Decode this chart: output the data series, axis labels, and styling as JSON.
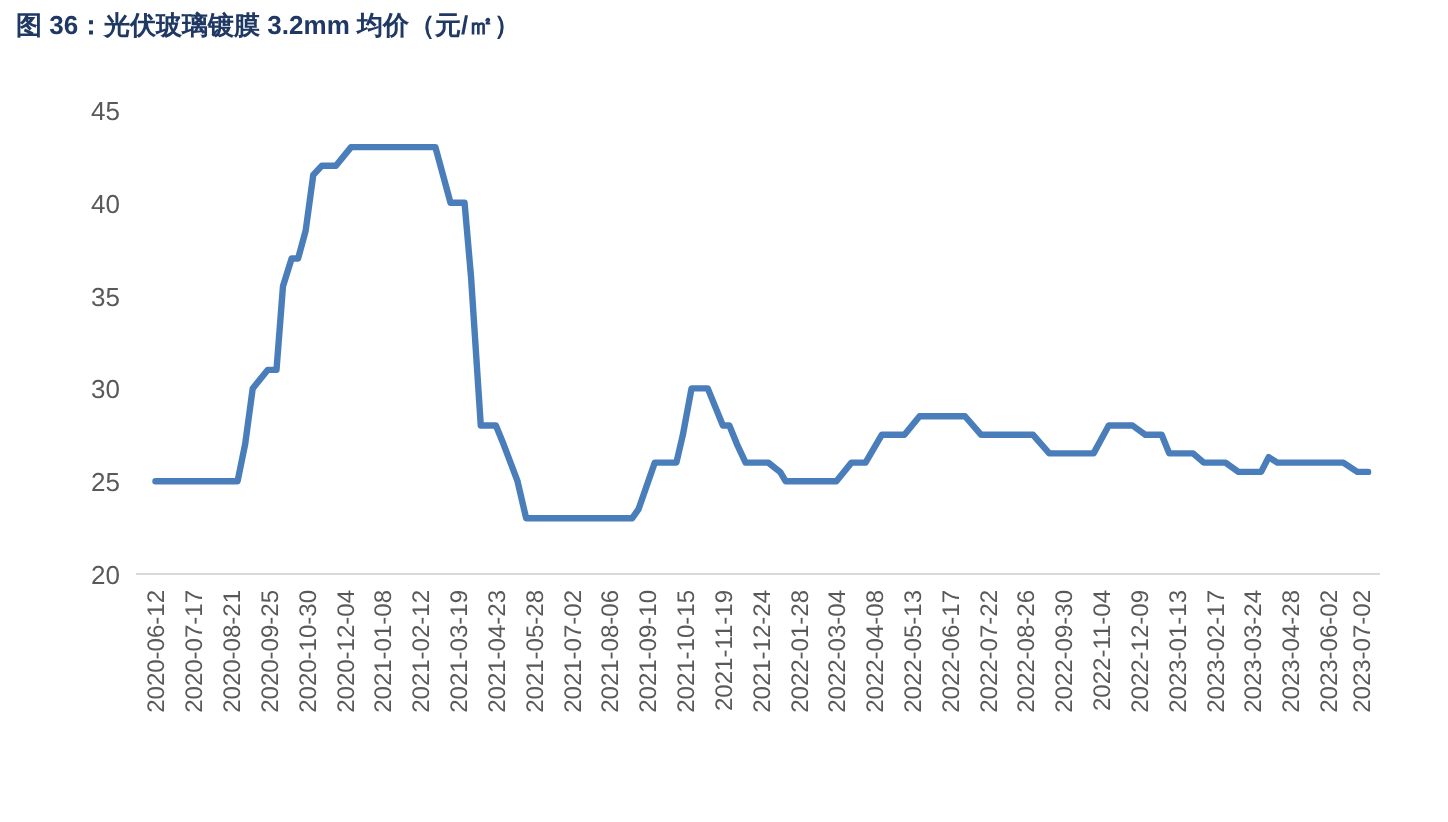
{
  "chart_data": {
    "type": "line",
    "title": "图 36：光伏玻璃镀膜 3.2mm 均价（元/㎡）",
    "x": [
      "2020-06-12",
      "2020-08-27",
      "2020-09-03",
      "2020-09-10",
      "2020-09-24",
      "2020-10-02",
      "2020-10-08",
      "2020-10-16",
      "2020-10-22",
      "2020-10-29",
      "2020-11-05",
      "2020-11-13",
      "2020-11-26",
      "2020-12-10",
      "2021-02-26",
      "2021-03-05",
      "2021-03-12",
      "2021-03-25",
      "2021-03-31",
      "2021-04-09",
      "2021-04-23",
      "2021-04-30",
      "2021-05-13",
      "2021-05-21",
      "2021-08-27",
      "2021-09-02",
      "2021-09-17",
      "2021-10-07",
      "2021-10-13",
      "2021-10-21",
      "2021-11-05",
      "2021-11-19",
      "2021-11-25",
      "2021-12-02",
      "2021-12-10",
      "2021-12-31",
      "2022-01-11",
      "2022-01-16",
      "2022-03-04",
      "2022-03-18",
      "2022-03-31",
      "2022-04-15",
      "2022-05-06",
      "2022-05-20",
      "2022-07-01",
      "2022-07-16",
      "2022-09-02",
      "2022-09-17",
      "2022-10-28",
      "2022-11-11",
      "2022-12-03",
      "2022-12-15",
      "2022-12-30",
      "2023-01-06",
      "2023-01-28",
      "2023-02-07",
      "2023-02-27",
      "2023-03-11",
      "2023-04-01",
      "2023-04-08",
      "2023-04-16",
      "2023-06-16",
      "2023-06-29",
      "2023-07-09"
    ],
    "series": [
      {
        "color": "#4a7ebb",
        "values": [
          25,
          25,
          27,
          30,
          31,
          31,
          35.5,
          37,
          37,
          38.5,
          41.5,
          42,
          42,
          43,
          43,
          41.5,
          40,
          40,
          36,
          28,
          28,
          27,
          25,
          23,
          23,
          23.5,
          26,
          26,
          27.5,
          30,
          30,
          28,
          28,
          27,
          26,
          26,
          25.5,
          25,
          25,
          26,
          26,
          27.5,
          27.5,
          28.5,
          28.5,
          27.5,
          27.5,
          26.5,
          26.5,
          28,
          28,
          27.5,
          27.5,
          26.5,
          26.5,
          26,
          26,
          25.5,
          25.5,
          26.3,
          26,
          26,
          25.5,
          25.5
        ]
      }
    ],
    "xlim": [
      "2020-05-25",
      "2023-07-20"
    ],
    "xticks": [
      "2020-06-12",
      "2020-07-17",
      "2020-08-21",
      "2020-09-25",
      "2020-10-30",
      "2020-12-04",
      "2021-01-08",
      "2021-02-12",
      "2021-03-19",
      "2021-04-23",
      "2021-05-28",
      "2021-07-02",
      "2021-08-06",
      "2021-09-10",
      "2021-10-15",
      "2021-11-19",
      "2021-12-24",
      "2022-01-28",
      "2022-03-04",
      "2022-04-08",
      "2022-05-13",
      "2022-06-17",
      "2022-07-22",
      "2022-08-26",
      "2022-09-30",
      "2022-11-04",
      "2022-12-09",
      "2023-01-13",
      "2023-02-17",
      "2023-03-24",
      "2023-04-28",
      "2023-06-02",
      "2023-07-02"
    ],
    "ylim": [
      20,
      45
    ],
    "yticks": [
      20,
      25,
      30,
      35,
      40,
      45
    ],
    "grid": false,
    "marker": "none",
    "line_style": "solid"
  }
}
